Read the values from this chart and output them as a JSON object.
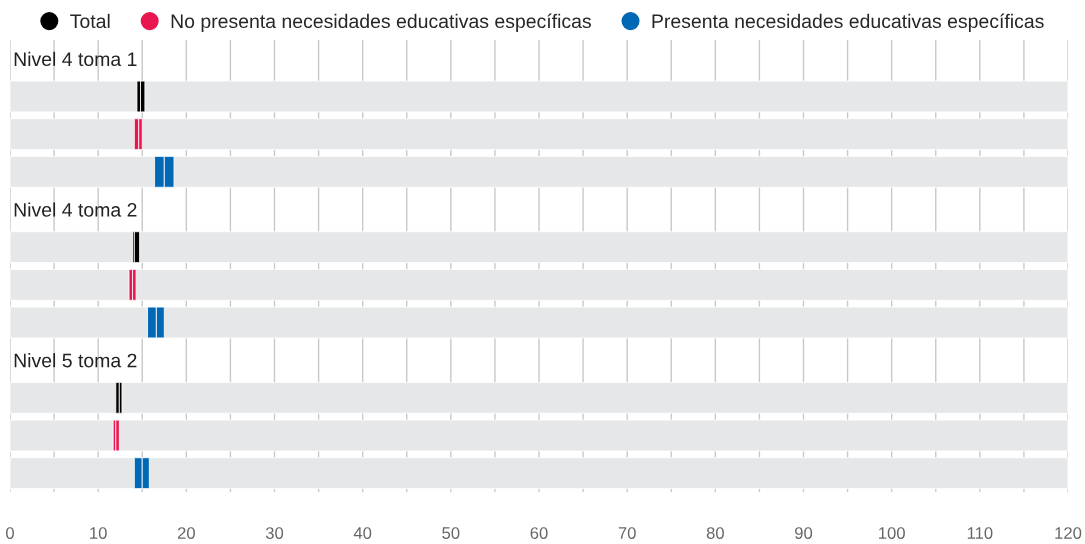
{
  "chart_data": {
    "type": "bar",
    "orientation": "horizontal",
    "categories": [
      "Nivel 4 toma 1",
      null,
      null,
      null,
      "Nivel 4 toma 2",
      null,
      null,
      null,
      "Nivel 5 toma 2",
      null,
      null,
      null
    ],
    "series": [
      {
        "color": "#e6e7e8",
        "base": [
          null,
          0,
          0,
          0,
          null,
          0,
          0,
          0,
          null,
          0,
          0,
          0
        ],
        "values": [
          null,
          120,
          120,
          120,
          null,
          120,
          120,
          120,
          null,
          120,
          120,
          120
        ]
      },
      {
        "name": "Total",
        "color": "#000000",
        "base": [
          null,
          14.4,
          null,
          null,
          null,
          13.9,
          null,
          null,
          null,
          12.0,
          null,
          null
        ],
        "values": [
          null,
          0.4,
          null,
          null,
          null,
          0.2,
          null,
          null,
          null,
          0.4,
          null,
          null
        ]
      },
      {
        "color": "#000000",
        "base": [
          null,
          14.8,
          null,
          null,
          null,
          14.1,
          null,
          null,
          null,
          12.4,
          null,
          null
        ],
        "values": [
          null,
          0.5,
          null,
          null,
          null,
          0.6,
          null,
          null,
          null,
          0.3,
          null,
          null
        ]
      },
      {
        "name": "No presenta necesidades educativas específicas",
        "color": "#e8174f",
        "base": [
          null,
          null,
          14.1,
          null,
          null,
          null,
          13.5,
          null,
          null,
          null,
          11.7,
          null
        ],
        "values": [
          null,
          null,
          0.5,
          null,
          null,
          null,
          0.4,
          null,
          null,
          null,
          0.3,
          null
        ]
      },
      {
        "color": "#e8174f",
        "base": [
          null,
          null,
          14.6,
          null,
          null,
          null,
          13.9,
          null,
          null,
          null,
          12.0,
          null
        ],
        "values": [
          null,
          null,
          0.4,
          null,
          null,
          null,
          0.4,
          null,
          null,
          null,
          0.4,
          null
        ]
      },
      {
        "name": "Presenta necesidades educativas específicas",
        "color": "#0068b5",
        "base": [
          null,
          null,
          null,
          16.4,
          null,
          null,
          null,
          15.6,
          null,
          null,
          null,
          14.1
        ],
        "values": [
          null,
          null,
          null,
          1.1,
          null,
          null,
          null,
          1.0,
          null,
          null,
          null,
          0.9
        ]
      },
      {
        "color": "#0068b5",
        "base": [
          null,
          null,
          null,
          17.5,
          null,
          null,
          null,
          16.6,
          null,
          null,
          null,
          15.0
        ],
        "values": [
          null,
          null,
          null,
          1.1,
          null,
          null,
          null,
          0.9,
          null,
          null,
          null,
          0.8
        ]
      }
    ],
    "xlim": [
      0,
      120
    ],
    "xticks": [
      0,
      {
        "value": 5,
        "label": null
      },
      10,
      {
        "value": 15,
        "label": null
      },
      20,
      {
        "value": 25,
        "label": null
      },
      30,
      {
        "value": 35,
        "label": null
      },
      40,
      {
        "value": 45,
        "label": null
      },
      50,
      {
        "value": 55,
        "label": null
      },
      60,
      {
        "value": 65,
        "label": null
      },
      70,
      {
        "value": 75,
        "label": null
      },
      80,
      {
        "value": 85,
        "label": null
      },
      90,
      {
        "value": 95,
        "label": null
      },
      100,
      {
        "value": 105,
        "label": null
      },
      110,
      {
        "value": 115,
        "label": null
      },
      120
    ],
    "grid": "x",
    "legend": "top left"
  }
}
